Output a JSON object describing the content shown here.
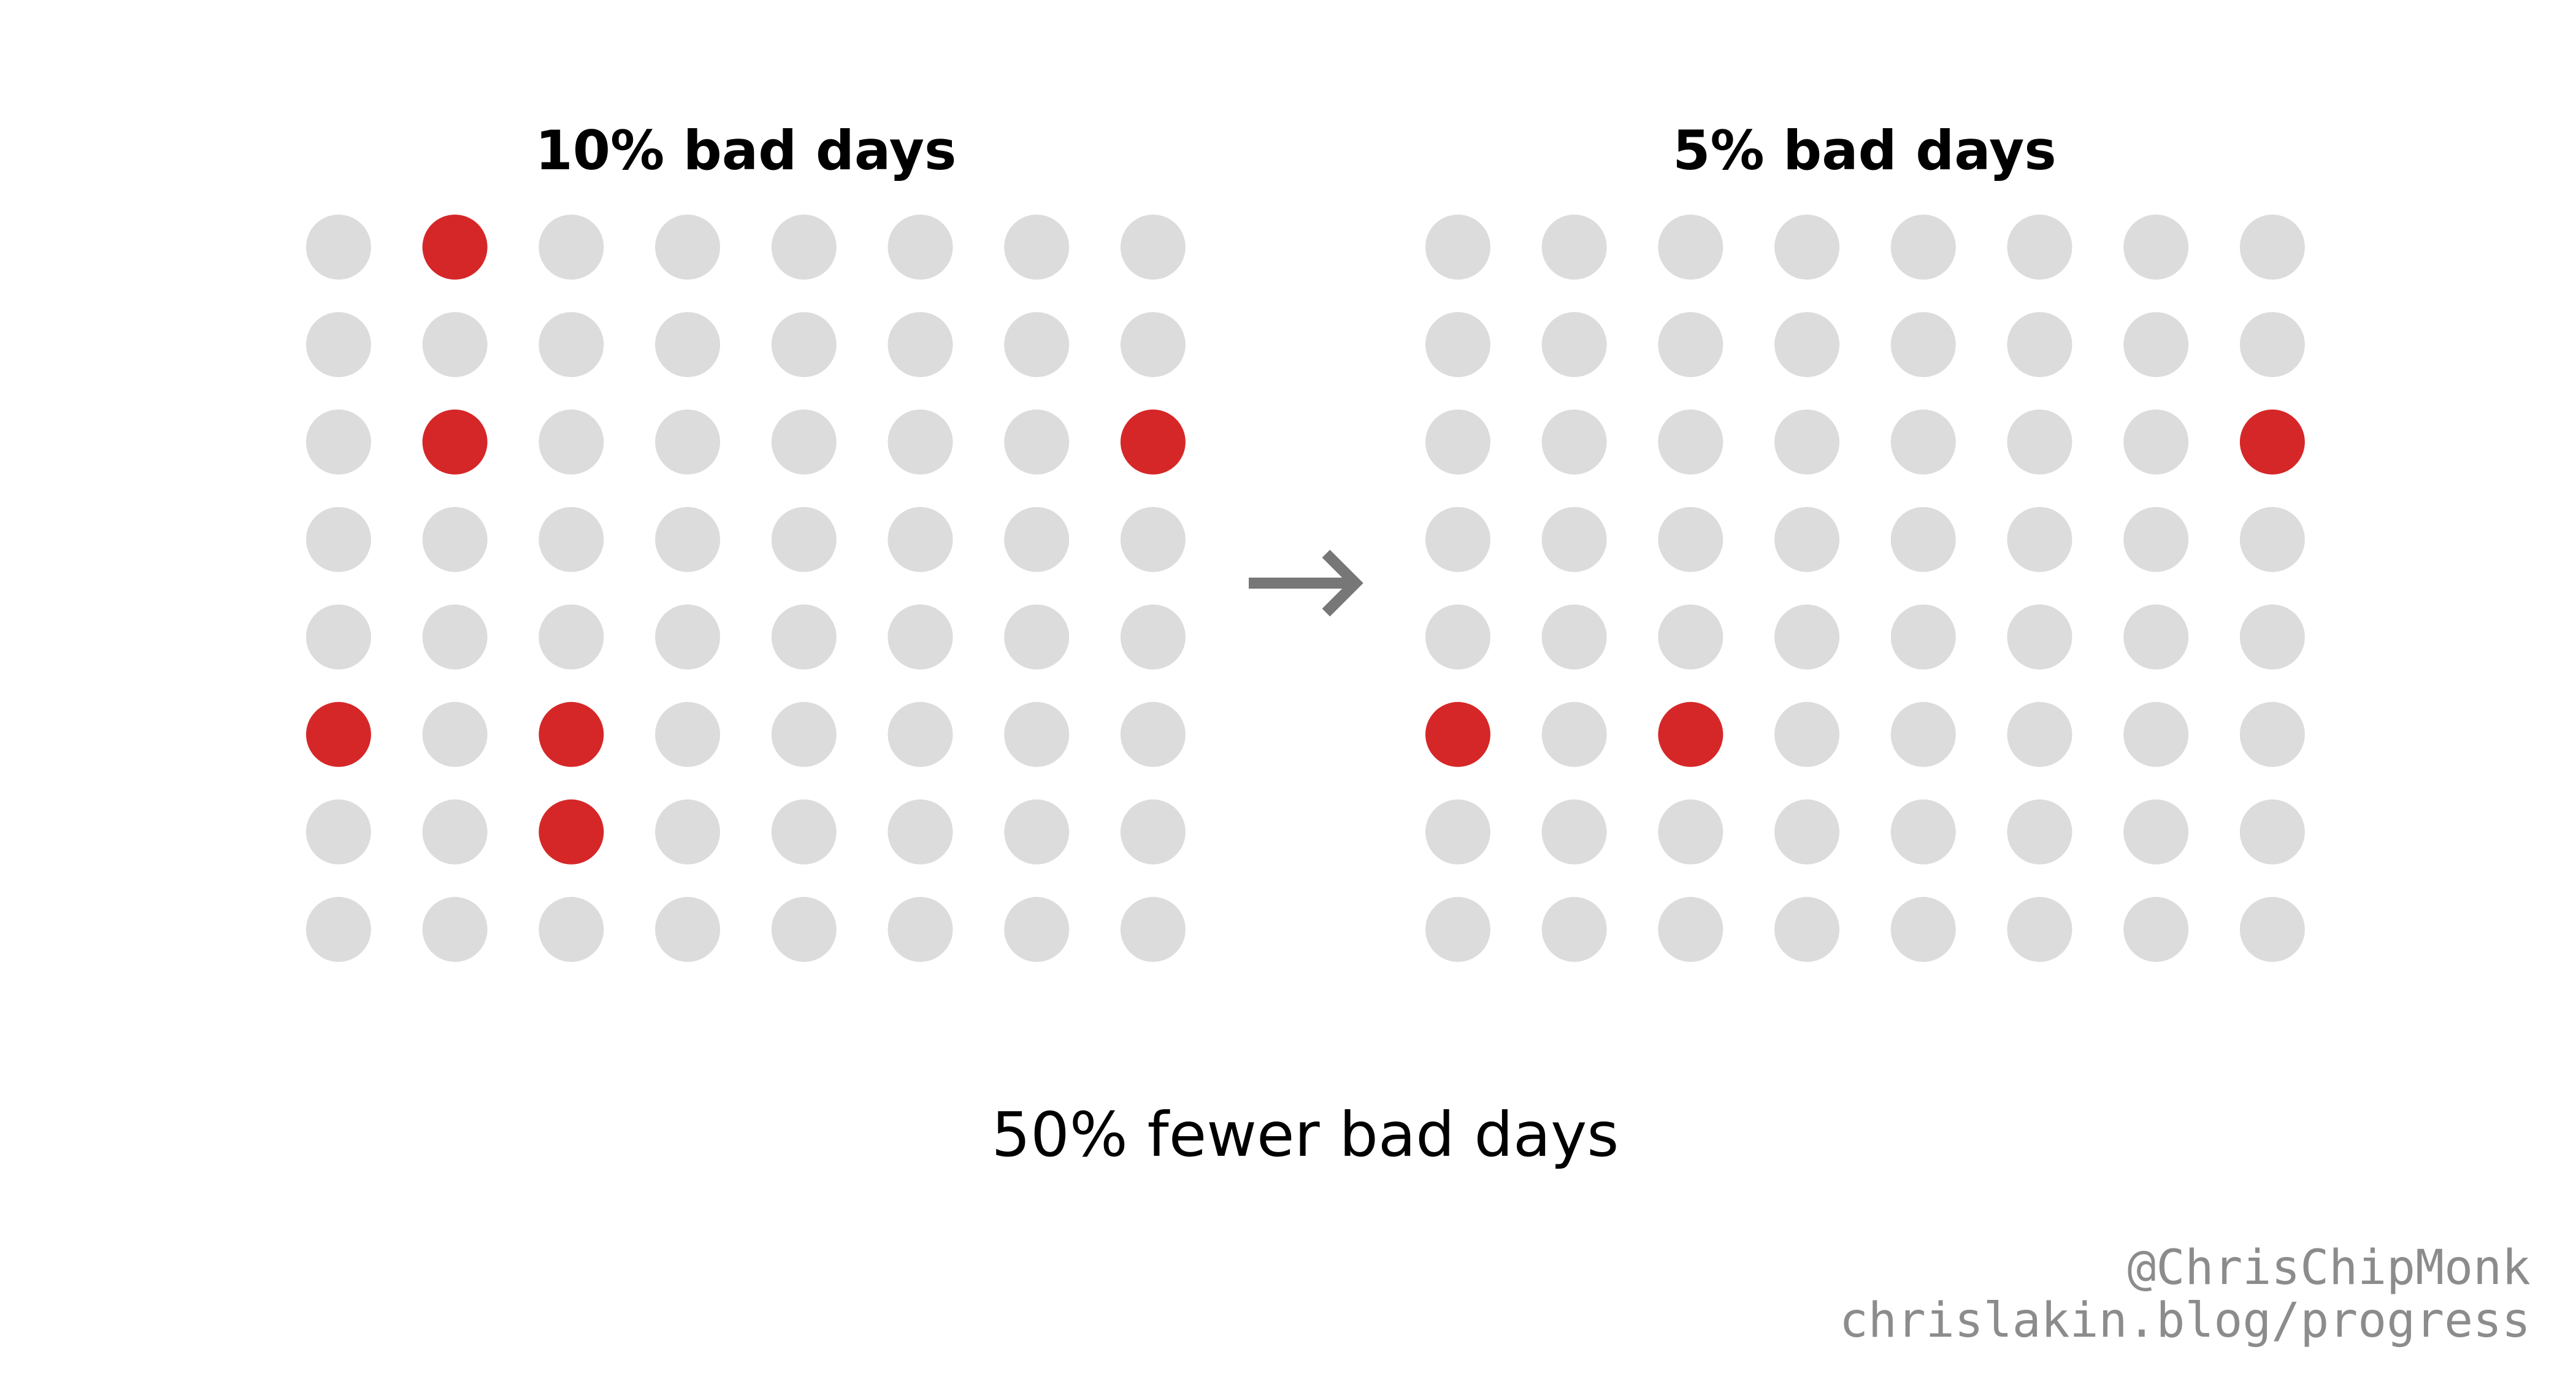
{
  "panels": [
    {
      "title": "10% bad days",
      "rows": 8,
      "cols": 8,
      "bad_cells": [
        [
          0,
          1
        ],
        [
          2,
          1
        ],
        [
          2,
          7
        ],
        [
          5,
          0
        ],
        [
          5,
          2
        ],
        [
          6,
          2
        ]
      ]
    },
    {
      "title": "5% bad days",
      "rows": 8,
      "cols": 8,
      "bad_cells": [
        [
          2,
          7
        ],
        [
          5,
          0
        ],
        [
          5,
          2
        ]
      ]
    }
  ],
  "arrow": {
    "glyph": "→",
    "icon": "arrow-right-icon"
  },
  "summary": "50% fewer bad days",
  "credits": {
    "handle": "@ChrisChipMonk",
    "url": "chrislakin.blog/progress"
  },
  "colors": {
    "good_dot": "#dcdcdc",
    "bad_dot": "#d62728",
    "arrow": "#777777",
    "credit_text": "#8c8c8c"
  }
}
